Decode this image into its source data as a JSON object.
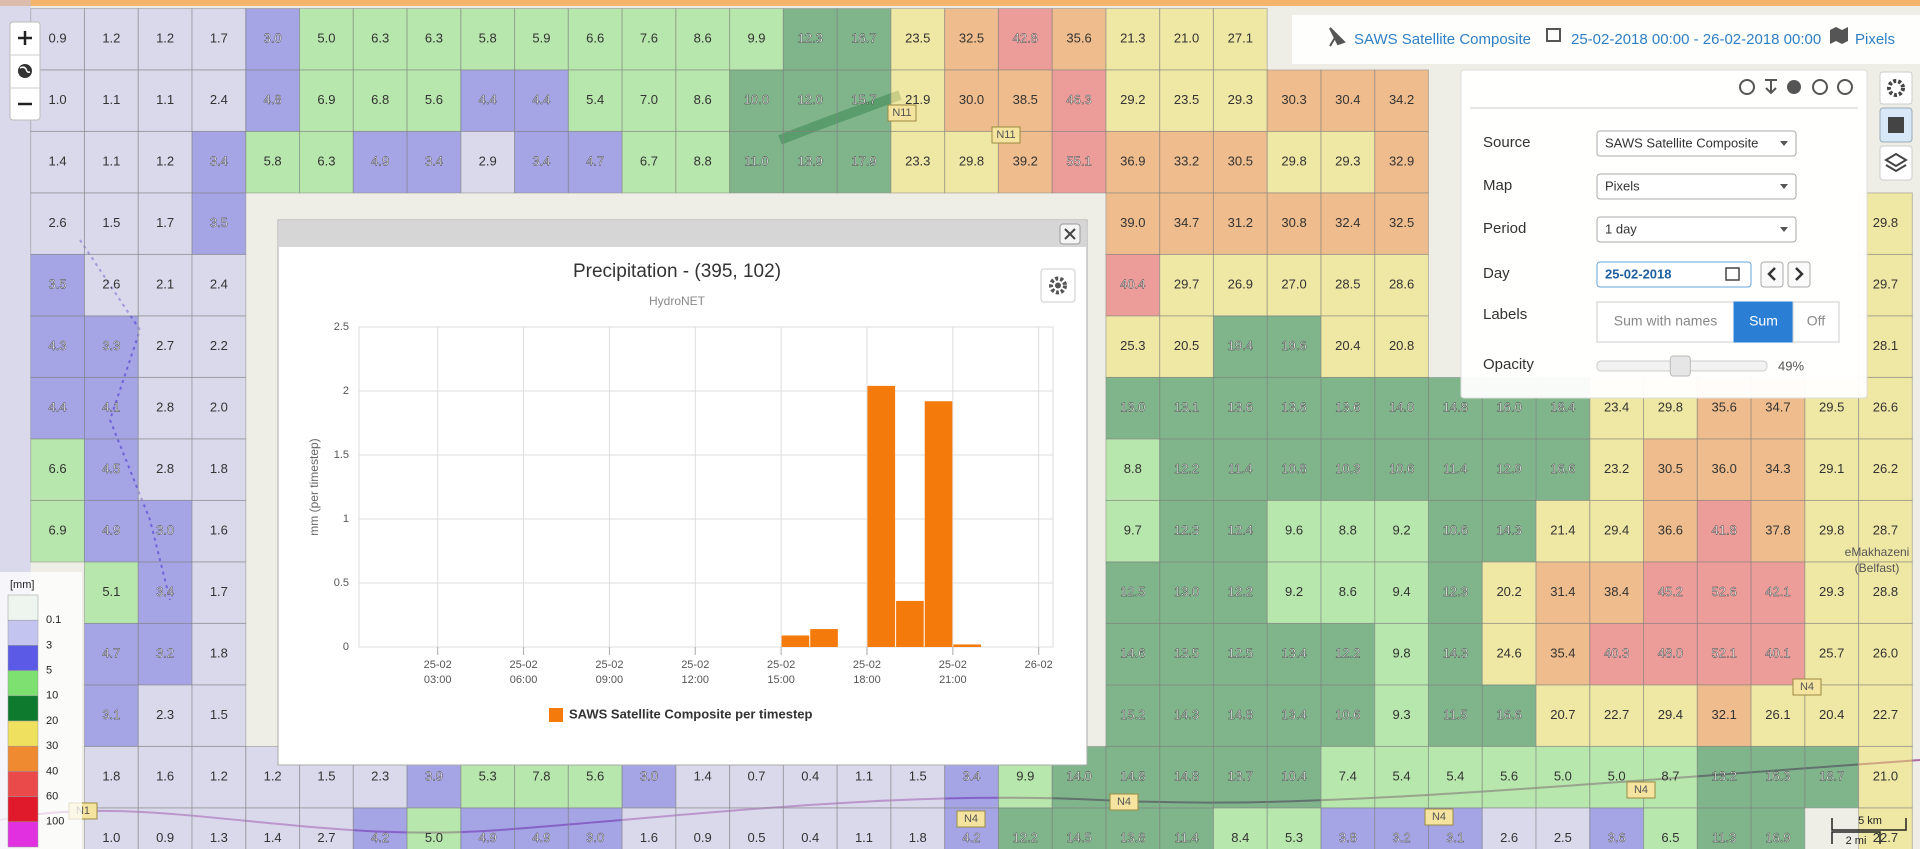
{
  "map": {
    "grid": [
      [
        "0.9",
        "1.2",
        "1.2",
        "1.7",
        "3.0",
        "5.0",
        "6.3",
        "6.3",
        "5.8",
        "5.9",
        "6.6",
        "7.6",
        "8.6",
        "9.9",
        "12.3",
        "16.7",
        "23.5",
        "32.5",
        "42.8",
        "35.6",
        "21.3",
        "21.0",
        "27.1"
      ],
      [
        "1.0",
        "1.1",
        "1.1",
        "2.4",
        "4.8",
        "6.9",
        "6.8",
        "5.6",
        "4.4",
        "4.4",
        "5.4",
        "7.0",
        "8.6",
        "10.0",
        "12.0",
        "15.7",
        "21.9",
        "30.0",
        "38.5",
        "46.3",
        "29.2",
        "23.5",
        "29.3",
        "30.3",
        "30.4",
        "34.2"
      ],
      [
        "1.4",
        "1.1",
        "1.2",
        "3.4",
        "5.8",
        "6.3",
        "4.9",
        "3.4",
        "2.9",
        "3.4",
        "4.7",
        "6.7",
        "8.8",
        "11.0",
        "13.9",
        "17.9",
        "23.3",
        "29.8",
        "39.2",
        "55.1",
        "36.9",
        "33.2",
        "30.5",
        "29.8",
        "29.3",
        "32.9"
      ],
      [
        "2.6",
        "1.5",
        "1.7",
        "3.5",
        null,
        null,
        null,
        null,
        null,
        null,
        null,
        null,
        null,
        null,
        null,
        null,
        null,
        null,
        null,
        null,
        "39.0",
        "34.7",
        "31.2",
        "30.8",
        "32.4",
        "32.5",
        null,
        null,
        null,
        null,
        null,
        null,
        null,
        null,
        "29.8"
      ],
      [
        "3.5",
        "2.6",
        "2.1",
        "2.4",
        null,
        null,
        null,
        null,
        null,
        null,
        null,
        null,
        null,
        null,
        null,
        null,
        null,
        null,
        null,
        null,
        "40.4",
        "29.7",
        "26.9",
        "27.0",
        "28.5",
        "28.6",
        null,
        null,
        null,
        null,
        null,
        null,
        null,
        null,
        "29.7"
      ],
      [
        "4.3",
        "3.3",
        "2.7",
        "2.2",
        null,
        null,
        null,
        null,
        null,
        null,
        null,
        null,
        null,
        null,
        null,
        null,
        null,
        null,
        null,
        null,
        "25.3",
        "20.5",
        "19.4",
        "19.6",
        "20.4",
        "20.8",
        null,
        null,
        null,
        null,
        null,
        null,
        null,
        null,
        "28.1"
      ],
      [
        "4.4",
        "4.1",
        "2.8",
        "2.0",
        null,
        null,
        null,
        null,
        null,
        null,
        null,
        null,
        null,
        null,
        null,
        null,
        null,
        null,
        null,
        null,
        "13.0",
        "13.1",
        "13.6",
        "13.6",
        "13.6",
        "14.0",
        "14.8",
        "16.0",
        "18.4",
        "23.4",
        "29.8",
        "35.6",
        "34.7",
        "29.5",
        "26.6"
      ],
      [
        "6.6",
        "4.5",
        "2.8",
        "1.8",
        null,
        null,
        null,
        null,
        null,
        null,
        null,
        null,
        null,
        null,
        null,
        null,
        null,
        null,
        null,
        null,
        "8.8",
        "12.2",
        "11.4",
        "10.8",
        "10.3",
        "10.6",
        "11.4",
        "12.9",
        "16.6",
        "23.2",
        "30.5",
        "36.0",
        "34.3",
        "29.1",
        "26.2"
      ],
      [
        "6.9",
        "4.9",
        "3.0",
        "1.6",
        null,
        null,
        null,
        null,
        null,
        null,
        null,
        null,
        null,
        null,
        null,
        null,
        null,
        null,
        null,
        null,
        "9.7",
        "12.3",
        "12.4",
        "9.6",
        "8.8",
        "9.2",
        "10.6",
        "14.3",
        "21.4",
        "29.4",
        "36.6",
        "41.8",
        "37.8",
        "29.8",
        "28.7"
      ],
      [
        null,
        "5.1",
        "3.4",
        "1.7",
        null,
        null,
        null,
        null,
        null,
        null,
        null,
        null,
        null,
        null,
        null,
        null,
        null,
        null,
        null,
        null,
        "12.5",
        "13.0",
        "12.2",
        "9.2",
        "8.6",
        "9.4",
        "12.3",
        "20.2",
        "31.4",
        "38.4",
        "45.2",
        "52.6",
        "42.1",
        "29.3",
        "28.8"
      ],
      [
        null,
        "4.7",
        "3.2",
        "1.8",
        null,
        null,
        null,
        null,
        null,
        null,
        null,
        null,
        null,
        null,
        null,
        null,
        null,
        null,
        null,
        null,
        "14.6",
        "13.5",
        "12.5",
        "13.4",
        "12.2",
        "9.8",
        "14.3",
        "24.6",
        "35.4",
        "40.3",
        "48.0",
        "52.1",
        "40.1",
        "25.7",
        "26.0"
      ],
      [
        null,
        "3.1",
        "2.3",
        "1.5",
        null,
        null,
        null,
        null,
        null,
        null,
        null,
        null,
        null,
        null,
        null,
        null,
        null,
        null,
        null,
        null,
        "15.2",
        "14.3",
        "14.8",
        "13.4",
        "10.6",
        "9.3",
        "11.5",
        "16.6",
        "20.7",
        "22.7",
        "29.4",
        "32.1",
        "26.1",
        "20.4",
        "22.7"
      ],
      [
        null,
        "1.8",
        "1.6",
        "1.2",
        "1.2",
        "1.5",
        "2.3",
        "3.9",
        "5.3",
        "7.8",
        "5.6",
        "3.0",
        "1.4",
        "0.7",
        "0.4",
        "1.1",
        "1.5",
        "3.4",
        "9.9",
        "14.0",
        "14.8",
        "14.8",
        "13.7",
        "10.4",
        "7.4",
        "5.4",
        "5.4",
        "5.6",
        "5.0",
        "5.0",
        "8.7",
        "13.2",
        "16.3",
        "18.7",
        "21.0"
      ],
      [
        null,
        "1.0",
        "0.9",
        "1.3",
        "1.4",
        "2.7",
        "4.2",
        "5.0",
        "4.9",
        "4.9",
        "3.0",
        "1.6",
        "0.9",
        "0.5",
        "0.4",
        "1.1",
        "1.8",
        "4.2",
        "12.2",
        "14.5",
        "13.8",
        "11.4",
        "8.4",
        "5.3",
        "3.8",
        "3.2",
        "3.1",
        "2.6",
        "2.5",
        "3.6",
        "6.5",
        "11.3",
        "16.9",
        null,
        "22.7"
      ]
    ],
    "legend": {
      "unit": "[mm]",
      "thresholds": [
        0.1,
        3,
        5,
        10,
        20,
        30,
        40,
        60,
        100
      ],
      "colors": [
        "#eef4ee",
        "#c4c4f0",
        "#5a5ae6",
        "#7ee070",
        "#0e7a2e",
        "#f0e060",
        "#f08a30",
        "#ea4a4a",
        "#e01a2a",
        "#e030e0"
      ]
    },
    "labels": [
      "N11",
      "N11",
      "N4",
      "N4",
      "N4",
      "N4",
      "N4",
      "N1",
      "eMakhazeni",
      "(Belfast)"
    ],
    "scale": [
      "5 km",
      "2 mi"
    ]
  },
  "topbar": {
    "source": "SAWS Satellite Composite",
    "period": "25-02-2018 00:00 - 26-02-2018 00:00",
    "map": "Pixels"
  },
  "panel": {
    "rows": [
      {
        "label": "Source",
        "value": "SAWS Satellite Composite"
      },
      {
        "label": "Map",
        "value": "Pixels"
      },
      {
        "label": "Period",
        "value": "1 day"
      },
      {
        "label": "Day",
        "value": "25-02-2018"
      }
    ],
    "labels_label": "Labels",
    "label_options": [
      "Sum with names",
      "Sum",
      "Off"
    ],
    "label_selected": 1,
    "opacity_label": "Opacity",
    "opacity": {
      "value": 49,
      "label": "49%"
    }
  },
  "chart_data": {
    "type": "bar",
    "title": "Precipitation - (395, 102)",
    "subtitle": "HydroNET",
    "ylabel": "mm (per timestep)",
    "x": [
      15,
      16,
      17,
      18,
      19,
      20,
      21
    ],
    "series": [
      {
        "name": "SAWS Satellite Composite per timestep",
        "color": "#f47a0c",
        "values": [
          0.09,
          0.14,
          0,
          2.04,
          0.36,
          1.92,
          0.02
        ]
      }
    ],
    "xlim": [
      0.25,
      24.5
    ],
    "xticks": [
      {
        "value": 3,
        "label": "25-02 03:00"
      },
      {
        "value": 6,
        "label": "25-02 06:00"
      },
      {
        "value": 9,
        "label": "25-02 09:00"
      },
      {
        "value": 12,
        "label": "25-02 12:00"
      },
      {
        "value": 15,
        "label": "25-02 15:00"
      },
      {
        "value": 18,
        "label": "25-02 18:00"
      },
      {
        "value": 21,
        "label": "25-02 21:00"
      },
      {
        "value": 24,
        "label": "26-02"
      }
    ],
    "ylim": [
      0,
      2.5
    ],
    "yticks": [
      0,
      0.5,
      1,
      1.5,
      2,
      2.5
    ],
    "grid": true
  }
}
